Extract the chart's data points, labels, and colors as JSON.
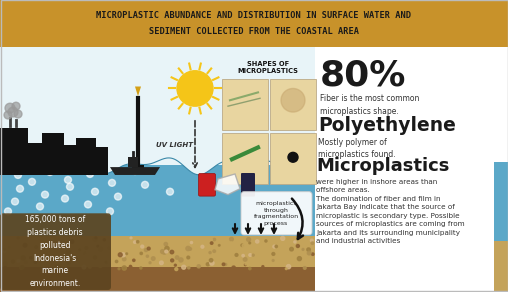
{
  "title_line1": "MICROPLASTIC ABUNDANCE AND DISTRIBUTION IN SURFACE WATER AND",
  "title_line2": "SEDIMENT COLLECTED FROM THE COASTAL AREA",
  "title_bg_color": "#C8922A",
  "title_text_color": "#1A1A1A",
  "bg_color": "#FFFFFF",
  "stat_80_text": "80%",
  "stat_80_sub": "Fiber is the most common\nmicroplastics shape.",
  "polyethylene_title": "Polyethylene",
  "polyethylene_sub": "Mostly polymer of\nmicroplastics found.",
  "microplastics_title": "Microplastics",
  "microplastics_body": "were higher in inshore areas than\noffshore areas.\nThe domination of fiber and film in\nJakarta Bay indicate that the source of\nmicroplastic is secondary type. Possible\nsources of microplastics are coming from\nJakarta and its surrounding municipality\nand industrial activities",
  "shapes_label": "SHAPES OF\nMICROPLASTICS",
  "shapes_box_color": "#D4B483",
  "cell_color": "#E8D5A0",
  "water_color": "#5BA8C8",
  "water_dark": "#3A88A8",
  "sky_color": "#E8F4F8",
  "sediment_top": "#C4A35A",
  "sediment_bot": "#8B6032",
  "left_text": "165,000 tons of\nplastics debris\npolluted\nIndonesia's\nmarine\nenvironment.",
  "left_box_color": "#5D4520",
  "fragmentation_text": "microplastics\nthrough\nfragmentation\nprocess",
  "uv_light_text": "UV LIGHT",
  "text_dark": "#1A1A1A",
  "text_mid": "#333333"
}
